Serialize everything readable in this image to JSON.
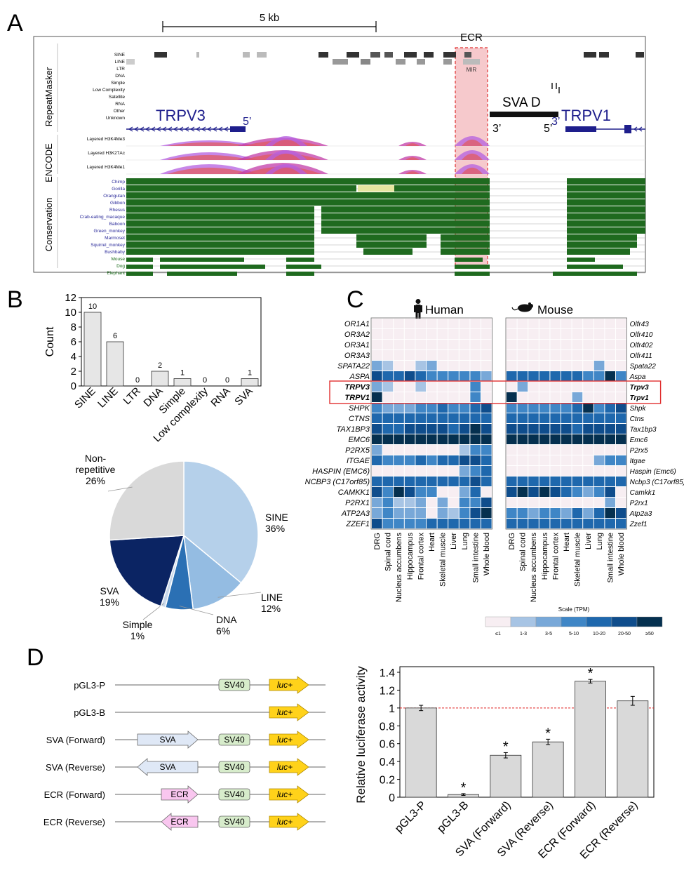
{
  "panels": {
    "a": "A",
    "b": "B",
    "c": "C",
    "d": "D"
  },
  "panelA": {
    "scale_label": "5 kb",
    "ecr_label": "ECR",
    "mir_label": "MIR",
    "sva_label": "SVA D",
    "sva_3": "3’",
    "sva_5": "5’",
    "trpv3_label": "TRPV3",
    "trpv3_5": "5’",
    "trpv1_label": "TRPV1",
    "trpv1_3": "3’",
    "section_repeat": "RepeatMasker",
    "section_encode": "ENCODE",
    "section_cons": "Conservation",
    "repeat_classes": [
      "SINE",
      "LINE",
      "LTR",
      "DNA",
      "Simple",
      "Low Complexity",
      "Satellite",
      "RNA",
      "Other",
      "Unknown"
    ],
    "encode_tracks": [
      "Layered H3K4Me3",
      "Layered H3K27Ac",
      "Layered H3K4Me1"
    ],
    "species": [
      "Chimp",
      "Gorilla",
      "Orangutan",
      "Gibbon",
      "Rhesus",
      "Crab-eating_macaque",
      "Baboon",
      "Green_monkey",
      "Marmoset",
      "Squirrel_monkey",
      "Bushbaby",
      "Mouse",
      "Dog",
      "Elephant"
    ],
    "colors": {
      "species_primate": "#2b2b9a",
      "species_other": "#1a6b1a",
      "gene": "#1e1e8c",
      "cons": "#1f6a1f",
      "ecr_fill": "#f6c9cc",
      "ecr_border": "#e03030"
    }
  },
  "chart_data": [
    {
      "type": "bar",
      "id": "repeat-count",
      "categories": [
        "SINE",
        "LINE",
        "LTR",
        "DNA",
        "Simple",
        "Low complexity",
        "RNA",
        "SVA"
      ],
      "values": [
        10,
        6,
        0,
        2,
        1,
        0,
        0,
        1
      ],
      "value_labels": [
        "10",
        "6",
        "0",
        "2",
        "1",
        "0",
        "0",
        "1"
      ],
      "ylabel": "Count",
      "ylim": [
        0,
        12
      ],
      "yticks": [
        "0",
        "2",
        "4",
        "6",
        "8",
        "10",
        "12"
      ],
      "color": "#e6e6e6"
    },
    {
      "type": "pie",
      "id": "repeat-fraction",
      "slices": [
        {
          "label": "SINE",
          "pct": "36%",
          "value": 36,
          "color": "#b5d0ea"
        },
        {
          "label": "LINE",
          "pct": "12%",
          "value": 12,
          "color": "#94bce2"
        },
        {
          "label": "DNA",
          "pct": "6%",
          "value": 6,
          "color": "#2b70b4"
        },
        {
          "label": "Simple",
          "pct": "1%",
          "value": 1,
          "color": "#c7d7ea"
        },
        {
          "label": "SVA",
          "pct": "19%",
          "value": 19,
          "color": "#0b2463"
        },
        {
          "label": "Non-repetitive",
          "pct": "26%",
          "value": 26,
          "color": "#d9d9d9"
        }
      ]
    },
    {
      "type": "heatmap",
      "id": "expression",
      "human_title": "Human",
      "mouse_title": "Mouse",
      "human_genes": [
        "OR1A1",
        "OR3A2",
        "OR3A1",
        "OR3A3",
        "SPATA22",
        "ASPA",
        "TRPV3",
        "TRPV1",
        "SHPK",
        "CTNS",
        "TAX1BP3",
        "EMC6",
        "P2RX5",
        "ITGAE",
        "HASPIN (EMC6)",
        "NCBP3 (C17orf85)",
        "CAMKK1",
        "P2RX1",
        "ATP2A3",
        "ZZEF1"
      ],
      "mouse_genes": [
        "Olfr43",
        "Olfr410",
        "Olfr402",
        "Olfr411",
        "Spata22",
        "Aspa",
        "Trpv3",
        "Trpv1",
        "Shpk",
        "Ctns",
        "Tax1bp3",
        "Emc6",
        "P2rx5",
        "Itgae",
        "Haspin (Emc6)",
        "Ncbp3 (C17orf85)",
        "Camkk1",
        "P2rx1",
        "Atp2a3",
        "Zzef1"
      ],
      "tissues": [
        "DRG",
        "Spinal cord",
        "Nucleus accumbens",
        "Hippocampus",
        "Frontal cortex",
        "Heart",
        "Skeletal muscle",
        "Liver",
        "Lung",
        "Small intestine",
        "Whole blood"
      ],
      "scale_title": "Scale (TPM)",
      "scale_labels": [
        "≤1",
        "1-3",
        "3-5",
        "5-10",
        "10-20",
        "20-50",
        "≥50"
      ],
      "scale_colors": [
        "#f7eef2",
        "#a7c4e4",
        "#78a8d8",
        "#3f86c6",
        "#1f68ad",
        "#0f4d8c",
        "#05304f"
      ],
      "human_levels": [
        [
          0,
          0,
          0,
          0,
          0,
          0,
          0,
          0,
          0,
          0,
          0
        ],
        [
          0,
          0,
          0,
          0,
          0,
          0,
          0,
          0,
          0,
          0,
          0
        ],
        [
          0,
          0,
          0,
          0,
          0,
          0,
          0,
          0,
          0,
          0,
          0
        ],
        [
          0,
          0,
          0,
          0,
          0,
          0,
          0,
          0,
          0,
          0,
          0
        ],
        [
          2,
          1,
          0,
          0,
          1,
          2,
          0,
          0,
          0,
          0,
          0
        ],
        [
          5,
          4,
          4,
          5,
          4,
          3,
          3,
          3,
          3,
          3,
          2
        ],
        [
          2,
          1,
          0,
          0,
          1,
          0,
          0,
          0,
          0,
          3,
          0
        ],
        [
          6,
          0,
          0,
          0,
          0,
          0,
          0,
          0,
          0,
          3,
          0
        ],
        [
          3,
          2,
          2,
          2,
          3,
          3,
          4,
          3,
          3,
          4,
          5
        ],
        [
          4,
          4,
          4,
          4,
          4,
          4,
          4,
          4,
          4,
          4,
          4
        ],
        [
          5,
          4,
          4,
          5,
          5,
          5,
          5,
          4,
          5,
          6,
          5
        ],
        [
          6,
          6,
          6,
          6,
          6,
          6,
          6,
          6,
          6,
          6,
          6
        ],
        [
          2,
          0,
          0,
          0,
          0,
          0,
          0,
          0,
          1,
          3,
          3
        ],
        [
          4,
          3,
          3,
          3,
          4,
          3,
          4,
          4,
          5,
          5,
          4
        ],
        [
          0,
          0,
          0,
          0,
          0,
          0,
          0,
          0,
          2,
          3,
          4
        ],
        [
          4,
          4,
          4,
          4,
          4,
          4,
          4,
          4,
          4,
          5,
          4
        ],
        [
          5,
          3,
          6,
          5,
          3,
          3,
          0,
          0,
          2,
          4,
          0
        ],
        [
          2,
          3,
          1,
          1,
          2,
          0,
          2,
          0,
          3,
          3,
          5
        ],
        [
          2,
          3,
          2,
          2,
          2,
          0,
          2,
          1,
          3,
          5,
          6
        ],
        [
          5,
          3,
          3,
          3,
          3,
          4,
          4,
          4,
          4,
          4,
          4
        ]
      ],
      "mouse_levels": [
        [
          0,
          0,
          0,
          0,
          0,
          0,
          0,
          0,
          0,
          0,
          0
        ],
        [
          0,
          0,
          0,
          0,
          0,
          0,
          0,
          0,
          0,
          0,
          0
        ],
        [
          0,
          0,
          0,
          0,
          0,
          0,
          0,
          0,
          0,
          0,
          0
        ],
        [
          0,
          0,
          0,
          0,
          0,
          0,
          0,
          0,
          0,
          0,
          0
        ],
        [
          0,
          0,
          0,
          0,
          0,
          0,
          0,
          0,
          2,
          0,
          0
        ],
        [
          4,
          4,
          4,
          4,
          4,
          4,
          4,
          3,
          3,
          6,
          3
        ],
        [
          0,
          2,
          0,
          0,
          0,
          0,
          0,
          0,
          0,
          0,
          0
        ],
        [
          6,
          0,
          0,
          0,
          0,
          0,
          2,
          0,
          0,
          0,
          0
        ],
        [
          3,
          3,
          3,
          3,
          3,
          3,
          4,
          6,
          3,
          4,
          5
        ],
        [
          4,
          4,
          4,
          4,
          4,
          4,
          4,
          4,
          4,
          4,
          4
        ],
        [
          5,
          5,
          5,
          5,
          5,
          5,
          4,
          5,
          5,
          5,
          5
        ],
        [
          6,
          6,
          6,
          6,
          6,
          6,
          6,
          6,
          6,
          6,
          6
        ],
        [
          0,
          0,
          0,
          0,
          0,
          0,
          0,
          0,
          0,
          0,
          0
        ],
        [
          0,
          0,
          0,
          0,
          0,
          0,
          0,
          0,
          2,
          3,
          3
        ],
        [
          0,
          0,
          0,
          0,
          0,
          0,
          0,
          0,
          0,
          0,
          0
        ],
        [
          4,
          4,
          4,
          4,
          4,
          4,
          4,
          4,
          4,
          4,
          4
        ],
        [
          5,
          6,
          5,
          6,
          5,
          4,
          3,
          2,
          3,
          5,
          0
        ],
        [
          0,
          0,
          0,
          0,
          0,
          0,
          0,
          0,
          0,
          2,
          0
        ],
        [
          3,
          3,
          2,
          3,
          3,
          2,
          4,
          2,
          4,
          6,
          5
        ],
        [
          4,
          4,
          4,
          4,
          4,
          4,
          4,
          4,
          4,
          4,
          4
        ]
      ]
    },
    {
      "type": "bar",
      "id": "luciferase",
      "categories": [
        "pGL3-P",
        "pGL3-B",
        "SVA (Forward)",
        "SVA (Reverse)",
        "ECR (Forward)",
        "ECR (Reverse)"
      ],
      "values": [
        1.0,
        0.03,
        0.47,
        0.62,
        1.3,
        1.08
      ],
      "errors": [
        0.03,
        0.01,
        0.03,
        0.03,
        0.02,
        0.05
      ],
      "significant": [
        false,
        true,
        true,
        true,
        true,
        false
      ],
      "sig_mark": "*",
      "ylabel": "Relative luciferase activity",
      "ylim": [
        0,
        1.4
      ],
      "yticks": [
        "0",
        "0.2",
        "0.4",
        "0.6",
        "0.8",
        "1",
        "1.2",
        "1.4"
      ],
      "reference_line": 1.0,
      "color": "#d9d9d9"
    }
  ],
  "panelD": {
    "constructs": [
      {
        "label": "pGL3-P",
        "insert": "",
        "dir": "",
        "sv40": true
      },
      {
        "label": "pGL3-B",
        "insert": "",
        "dir": "",
        "sv40": false
      },
      {
        "label": "SVA (Forward)",
        "insert": "SVA",
        "dir": "forward",
        "sv40": true
      },
      {
        "label": "SVA (Reverse)",
        "insert": "SVA",
        "dir": "reverse",
        "sv40": true
      },
      {
        "label": "ECR (Forward)",
        "insert": "ECR",
        "dir": "forward",
        "sv40": true
      },
      {
        "label": "ECR (Reverse)",
        "insert": "ECR",
        "dir": "reverse",
        "sv40": true
      }
    ],
    "sv40_label": "SV40",
    "luc_label": "luc+",
    "colors": {
      "sva": "#dfe8f6",
      "ecr": "#f9c6ef",
      "sv40": "#d7eccb",
      "luc": "#ffd21a"
    }
  }
}
